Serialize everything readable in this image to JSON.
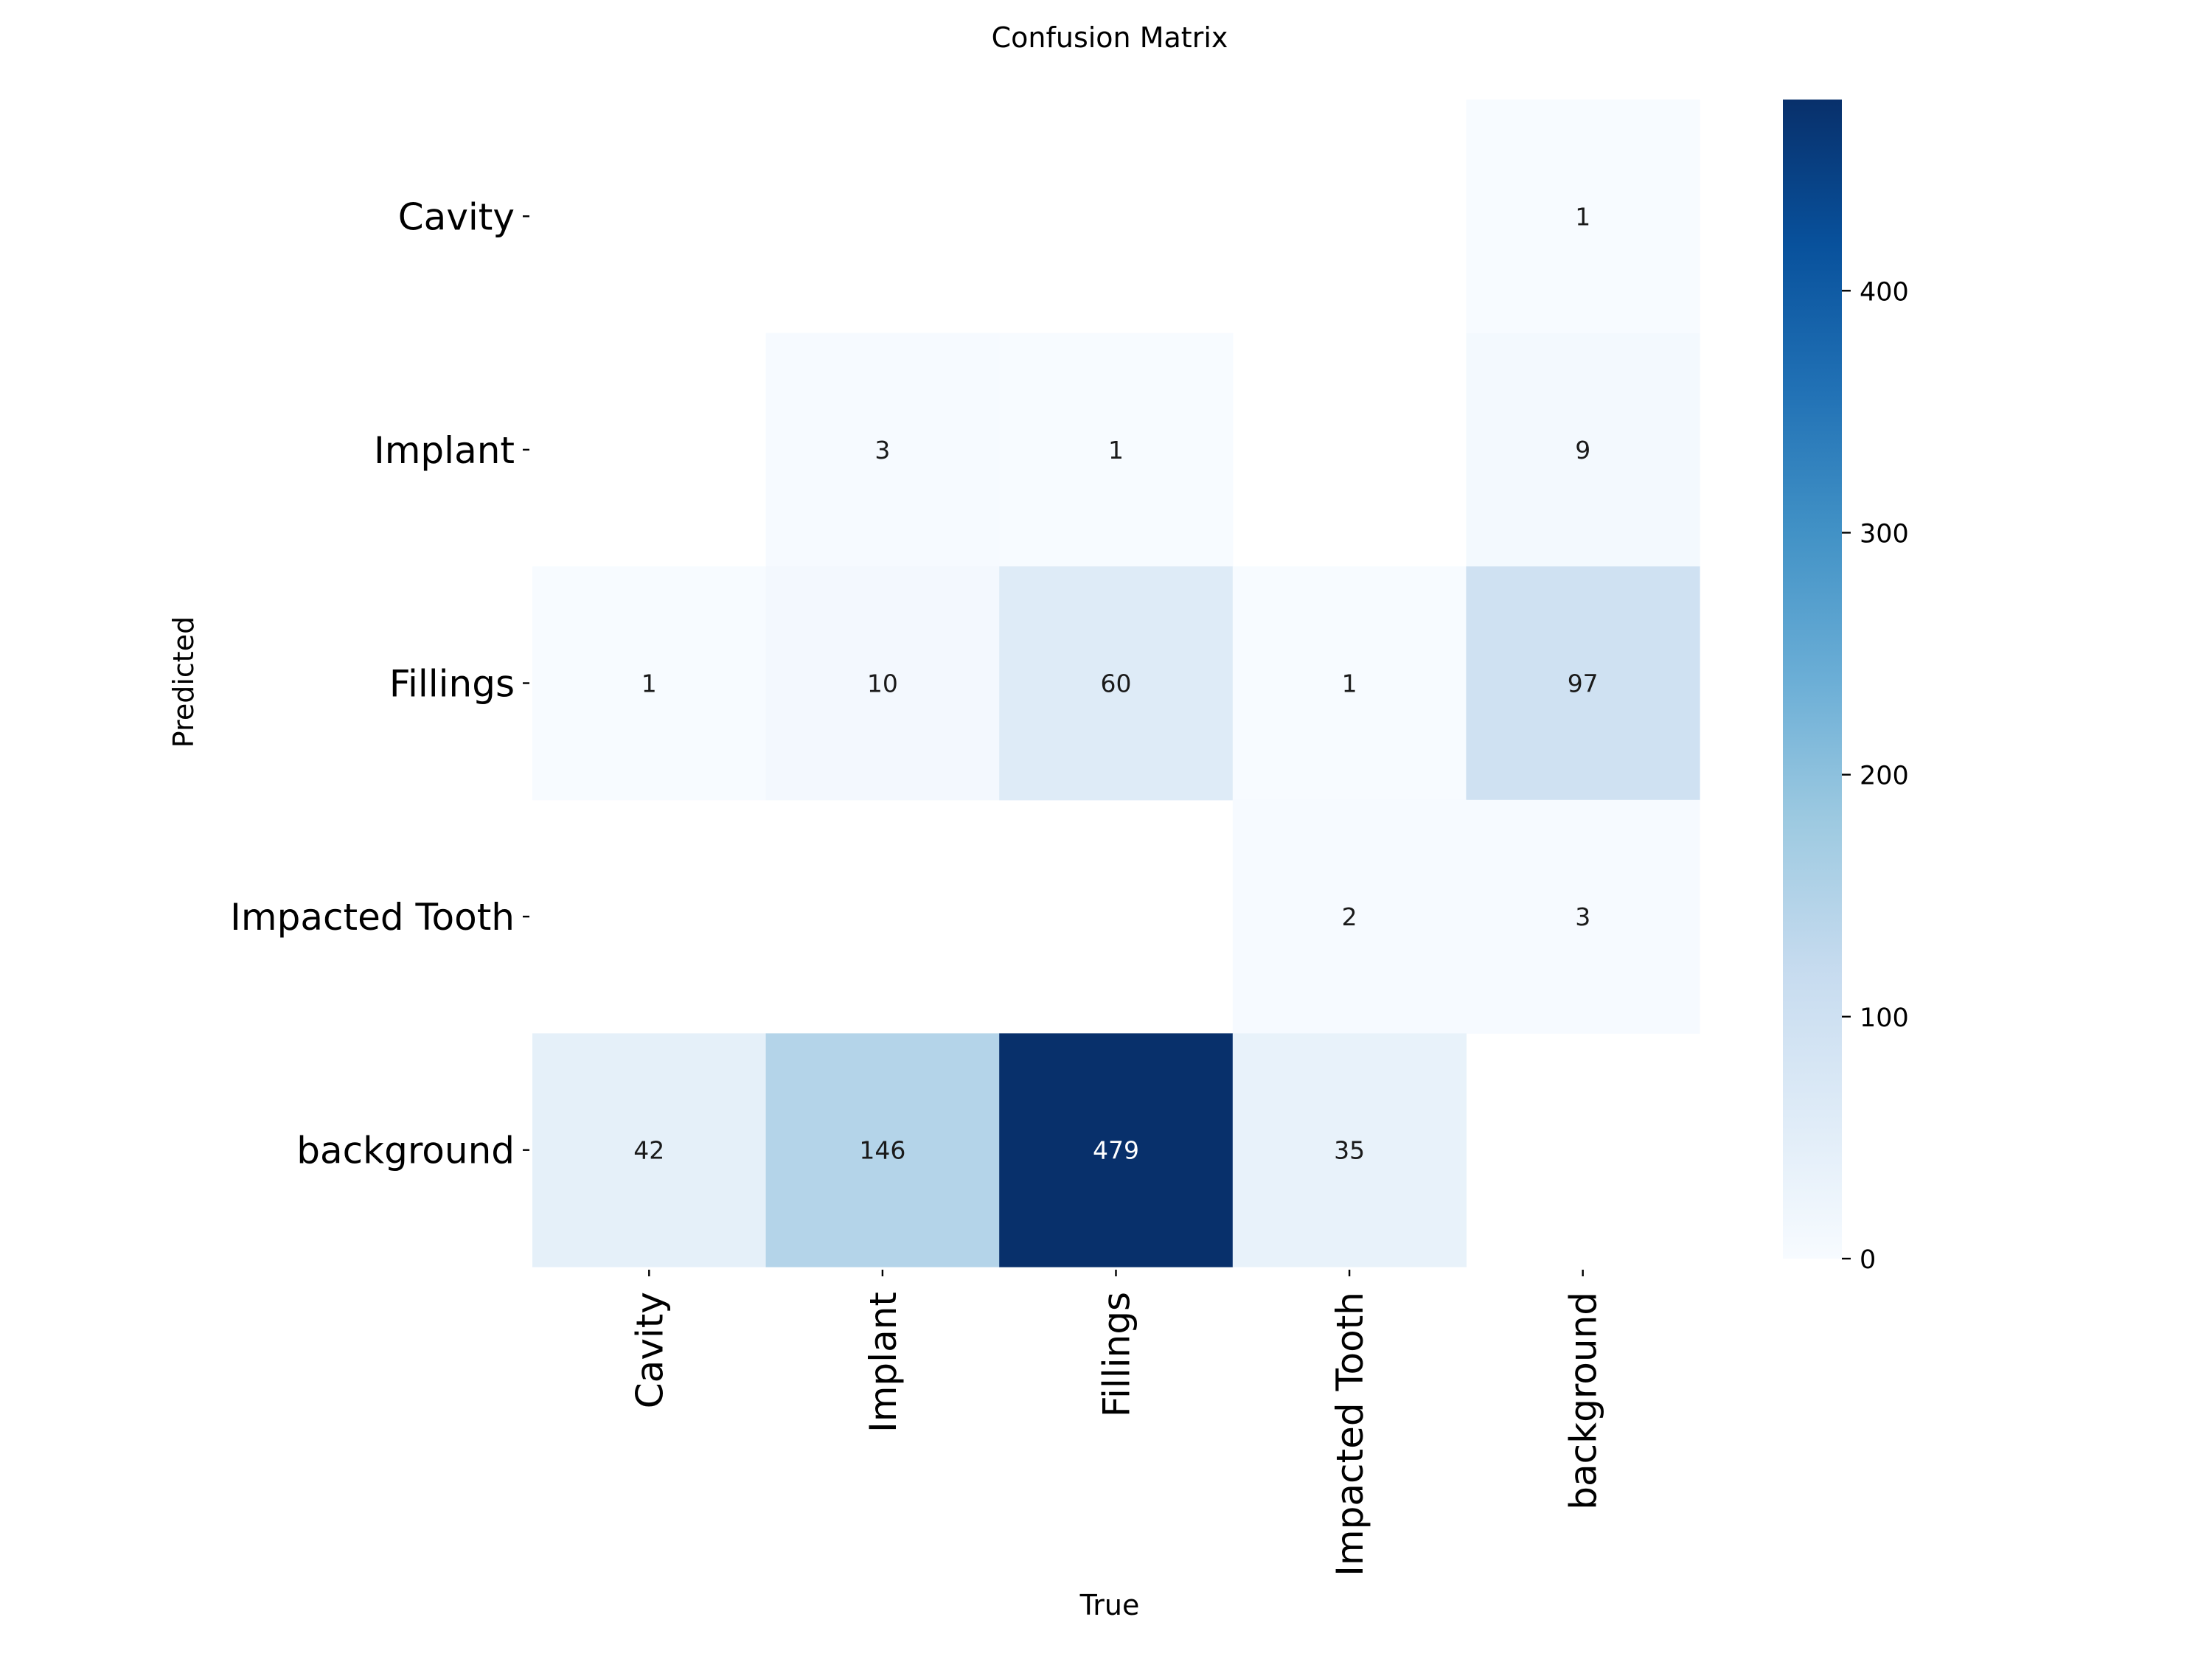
{
  "chart_data": {
    "type": "heatmap",
    "title": "Confusion Matrix",
    "xlabel": "True",
    "ylabel": "Predicted",
    "x_categories": [
      "Cavity",
      "Implant",
      "Fillings",
      "Impacted Tooth",
      "background"
    ],
    "y_categories": [
      "Cavity",
      "Implant",
      "Fillings",
      "Impacted Tooth",
      "background"
    ],
    "values": [
      [
        null,
        null,
        null,
        null,
        1
      ],
      [
        null,
        3,
        1,
        null,
        9
      ],
      [
        1,
        10,
        60,
        1,
        97
      ],
      [
        null,
        null,
        null,
        2,
        3
      ],
      [
        42,
        146,
        479,
        35,
        null
      ]
    ],
    "colormap": "Blues",
    "colorbar": {
      "range": [
        0,
        479
      ],
      "ticks": [
        0,
        100,
        200,
        300,
        400
      ]
    },
    "grid": false
  }
}
